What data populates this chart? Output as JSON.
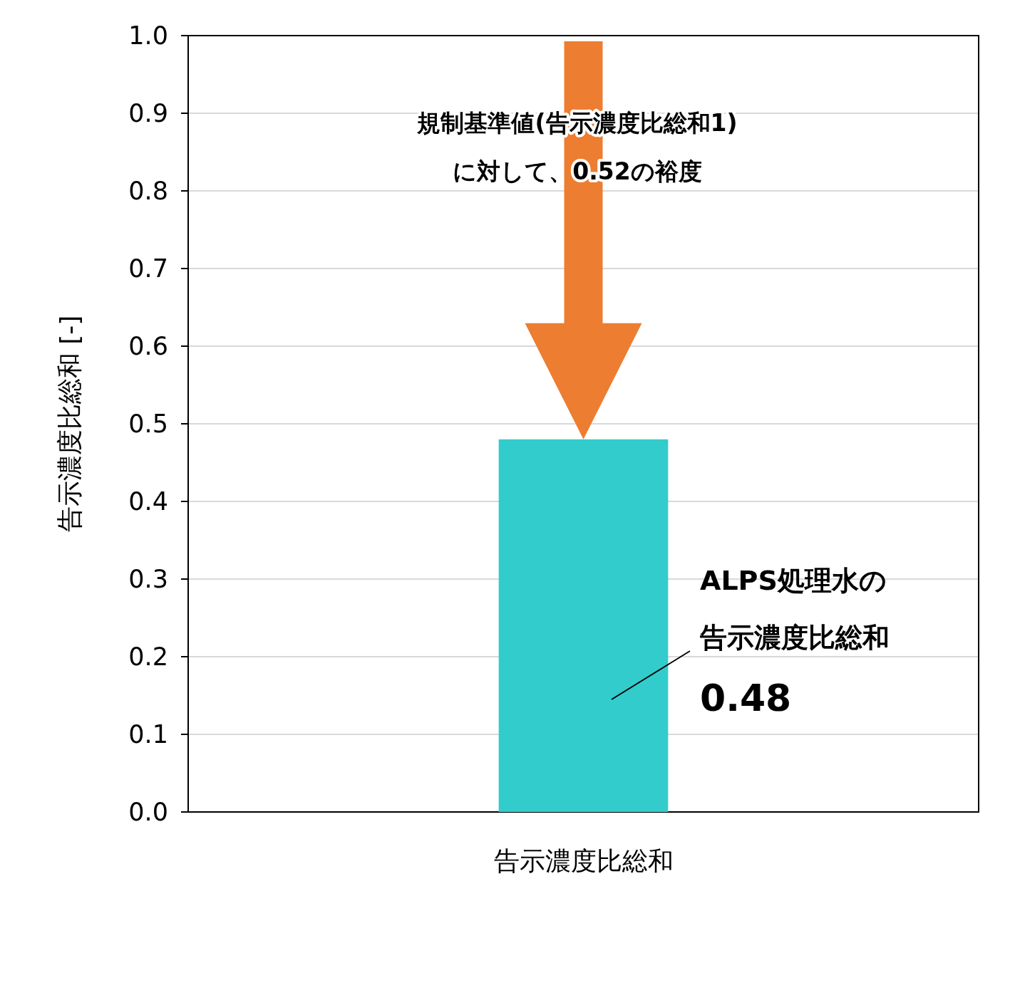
{
  "chart_data": {
    "type": "bar",
    "ylabel": "告示濃度比総和 [-]",
    "categories": [
      "告示濃度比総和"
    ],
    "values": [
      0.48
    ],
    "color": "#33cccc",
    "ylim": [
      0,
      1
    ],
    "yticks": [
      {
        "value": 0,
        "label": "0.0"
      },
      0.1,
      0.2,
      0.3,
      0.4,
      0.5,
      0.6,
      0.7,
      0.8,
      0.9,
      {
        "value": 1,
        "label": "1.0"
      }
    ],
    "grid": "y",
    "annotations": [
      "規制基準値(告示濃度比総和1)",
      "に対して、0.52の裕度",
      "ALPS処理水の",
      "告示濃度比総和",
      "0.48"
    ]
  }
}
